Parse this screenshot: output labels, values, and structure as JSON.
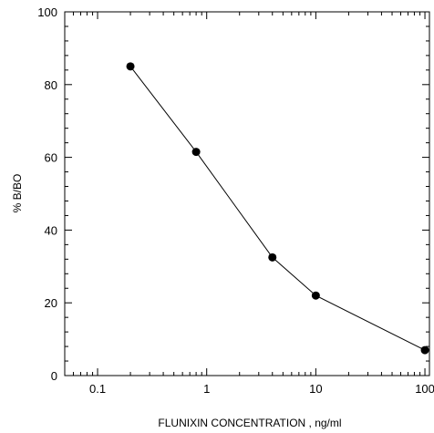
{
  "chart_data": {
    "type": "scatter",
    "title": "",
    "xlabel": "FLUNIXIN  CONCENTRATION , ng/ml",
    "ylabel": "% B/BO",
    "xscale": "log",
    "xlim": [
      0.05,
      110
    ],
    "ylim": [
      0,
      100
    ],
    "grid": false,
    "legend": "none",
    "line_color": "#000000",
    "marker_color": "#000000",
    "x_ticks": [
      {
        "value": 0.1,
        "label": "0.1"
      },
      {
        "value": 1,
        "label": "1"
      },
      {
        "value": 10,
        "label": "10"
      },
      {
        "value": 100,
        "label": "100"
      }
    ],
    "y_ticks": [
      {
        "value": 0,
        "label": "0"
      },
      {
        "value": 20,
        "label": "20"
      },
      {
        "value": 40,
        "label": "40"
      },
      {
        "value": 60,
        "label": "60"
      },
      {
        "value": 80,
        "label": "80"
      },
      {
        "value": 100,
        "label": "100"
      }
    ],
    "series": [
      {
        "x": [
          0.2,
          0.8,
          4,
          10,
          100
        ],
        "y": [
          85,
          61.5,
          32.5,
          22,
          7
        ]
      }
    ]
  }
}
